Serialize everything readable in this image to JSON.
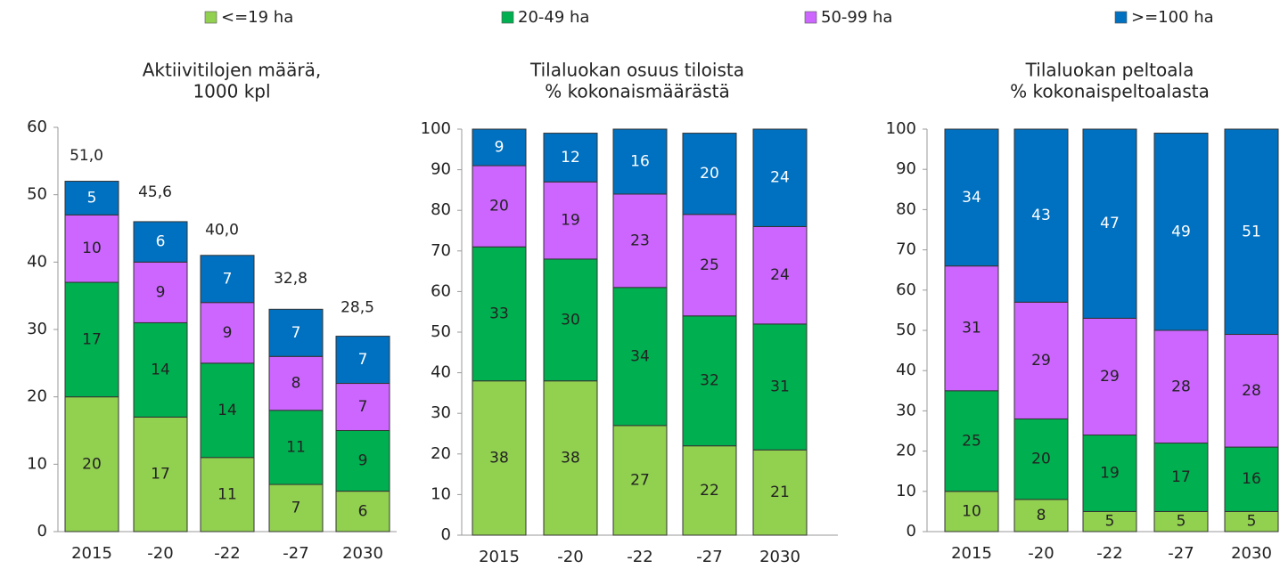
{
  "legend": [
    {
      "name": "<=19 ha",
      "color": "#92d050"
    },
    {
      "name": "20-49 ha",
      "color": "#00b050"
    },
    {
      "name": "50-99 ha",
      "color": "#cc66ff"
    },
    {
      "name": ">=100 ha",
      "color": "#0070c0"
    }
  ],
  "chart_data": [
    {
      "type": "stacked_bar",
      "title": [
        "Aktiivitilojen määrä,",
        "1000 kpl"
      ],
      "categories": [
        "2015",
        "-20",
        "-22",
        "-27",
        "2030"
      ],
      "series": [
        {
          "values": [
            20,
            17,
            11,
            7,
            6
          ]
        },
        {
          "values": [
            17,
            14,
            14,
            11,
            9
          ]
        },
        {
          "values": [
            10,
            9,
            9,
            8,
            7
          ]
        },
        {
          "values": [
            5,
            6,
            7,
            7,
            7
          ]
        }
      ],
      "totals": [
        51.0,
        45.6,
        40.0,
        32.8,
        28.5
      ],
      "total_labels": [
        "51,0",
        "45,6",
        "40,0",
        "32,8",
        "28,5"
      ],
      "ylim": [
        0,
        60
      ],
      "yticks": [
        0,
        10,
        20,
        30,
        40,
        50,
        60
      ]
    },
    {
      "type": "stacked_bar",
      "title": [
        "Tilaluokan osuus tiloista",
        "% kokonaismäärästä"
      ],
      "categories": [
        "2015",
        "-20",
        "-22",
        "-27",
        "2030"
      ],
      "series": [
        {
          "values": [
            38,
            38,
            27,
            22,
            21
          ]
        },
        {
          "values": [
            33,
            30,
            34,
            32,
            31
          ]
        },
        {
          "values": [
            20,
            19,
            23,
            25,
            24
          ]
        },
        {
          "values": [
            9,
            12,
            16,
            20,
            24
          ]
        }
      ],
      "ylim": [
        0,
        100
      ],
      "yticks": [
        0,
        10,
        20,
        30,
        40,
        50,
        60,
        70,
        80,
        90,
        100
      ]
    },
    {
      "type": "stacked_bar",
      "title": [
        "Tilaluokan peltoala",
        "% kokonaispeltoalasta"
      ],
      "categories": [
        "2015",
        "-20",
        "-22",
        "-27",
        "2030"
      ],
      "series": [
        {
          "values": [
            10,
            8,
            5,
            5,
            5
          ]
        },
        {
          "values": [
            25,
            20,
            19,
            17,
            16
          ]
        },
        {
          "values": [
            31,
            29,
            29,
            28,
            28
          ]
        },
        {
          "values": [
            34,
            43,
            47,
            49,
            51
          ]
        }
      ],
      "ylim": [
        0,
        100
      ],
      "yticks": [
        0,
        10,
        20,
        30,
        40,
        50,
        60,
        70,
        80,
        90,
        100
      ]
    }
  ]
}
